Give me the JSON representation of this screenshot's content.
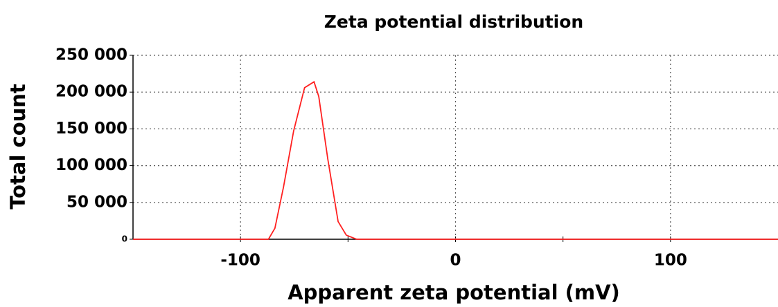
{
  "chart_data": {
    "type": "line",
    "title": "Zeta potential distribution",
    "xlabel": "Apparent zeta potential (mV)",
    "ylabel": "Total count",
    "x": [
      -150,
      -87,
      -84,
      -80,
      -75.3,
      -70.2,
      -65.8,
      -63.6,
      -59.4,
      -54.6,
      -50.8,
      -46,
      150
    ],
    "values": [
      0,
      0,
      15000,
      71000,
      147000,
      206000,
      214000,
      194000,
      109000,
      24000,
      5600,
      0,
      0
    ],
    "color": "#ff2020",
    "xlim": [
      -150,
      150
    ],
    "xticks": [
      -100,
      0,
      100
    ],
    "xminorticks": [
      -50,
      50
    ],
    "ylim": [
      0,
      250000
    ],
    "yticks": [
      0,
      {
        "value": 50000,
        "label": "50 000"
      },
      {
        "value": 100000,
        "label": "100 000"
      },
      {
        "value": 150000,
        "label": "150 000"
      },
      {
        "value": 200000,
        "label": "200 000"
      },
      {
        "value": 250000,
        "label": "250 000"
      }
    ],
    "grid": true
  }
}
